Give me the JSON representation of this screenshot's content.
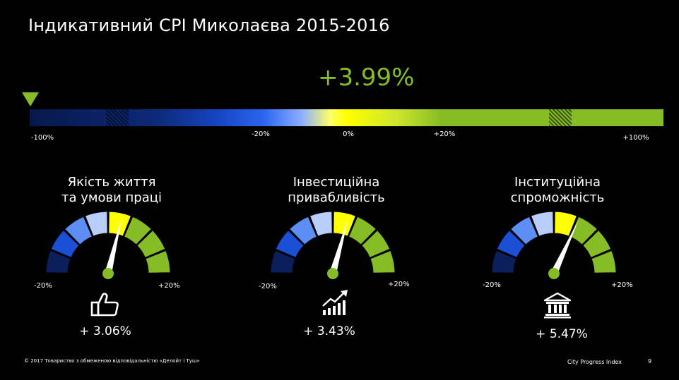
{
  "title": "Індикативний CPI Миколаєва 2015-2016",
  "overall_value": "+3.99%",
  "overall_percent": 3.99,
  "scale": {
    "labels": [
      "-100%",
      "-20%",
      "0%",
      "+20%",
      "+100%"
    ],
    "colors": {
      "negative_dark": "#07184a",
      "negative": "#2b66f0",
      "zero": "#ffff00",
      "positive": "#86bc25"
    }
  },
  "gauges": [
    {
      "title_line1": "Якість життя",
      "title_line2": "та умови праці",
      "min_label": "-20%",
      "max_label": "+20%",
      "value_label": "+ 3.06%",
      "value": 3.06,
      "icon": "thumbs-up-icon"
    },
    {
      "title_line1": "Інвестиційна",
      "title_line2": "привабливість",
      "min_label": "-20%",
      "max_label": "+20%",
      "value_label": "+ 3.43%",
      "value": 3.43,
      "icon": "growth-chart-icon"
    },
    {
      "title_line1": "Інституційна",
      "title_line2": "спроможність",
      "min_label": "-20%",
      "max_label": "+20%",
      "value_label": "+ 5.47%",
      "value": 5.47,
      "icon": "institution-building-icon"
    }
  ],
  "footer": {
    "copyright": "© 2017 Товариство з обмеженою відповідальністю «Делойт і Туш»",
    "brand": "City Progress Index",
    "page": "9"
  }
}
